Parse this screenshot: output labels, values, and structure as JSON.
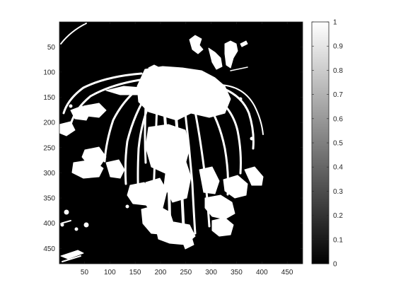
{
  "figure": {
    "image_description_type": "binary mask image of a plant (white) on black background, shown with grayscale colormap",
    "x_axis": {
      "range": [
        1,
        480
      ],
      "ticks": [
        50,
        100,
        150,
        200,
        250,
        300,
        350,
        400,
        450
      ],
      "tick_labels": [
        "50",
        "100",
        "150",
        "200",
        "250",
        "300",
        "350",
        "400",
        "450"
      ]
    },
    "y_axis": {
      "range": [
        1,
        480
      ],
      "direction": "reverse",
      "ticks": [
        50,
        100,
        150,
        200,
        250,
        300,
        350,
        400,
        450
      ],
      "tick_labels": [
        "50",
        "100",
        "150",
        "200",
        "250",
        "300",
        "350",
        "400",
        "450"
      ]
    },
    "colorbar": {
      "colormap": "gray",
      "range": [
        0,
        1
      ],
      "ticks": [
        0,
        0.1,
        0.2,
        0.3,
        0.4,
        0.5,
        0.6,
        0.7,
        0.8,
        0.9,
        1
      ],
      "tick_labels": [
        "0",
        "0.1",
        "0.2",
        "0.3",
        "0.4",
        "0.5",
        "0.6",
        "0.7",
        "0.8",
        "0.9",
        "1"
      ]
    },
    "colors": {
      "background": "#000000",
      "foreground": "#ffffff",
      "axis": "#262626"
    }
  }
}
